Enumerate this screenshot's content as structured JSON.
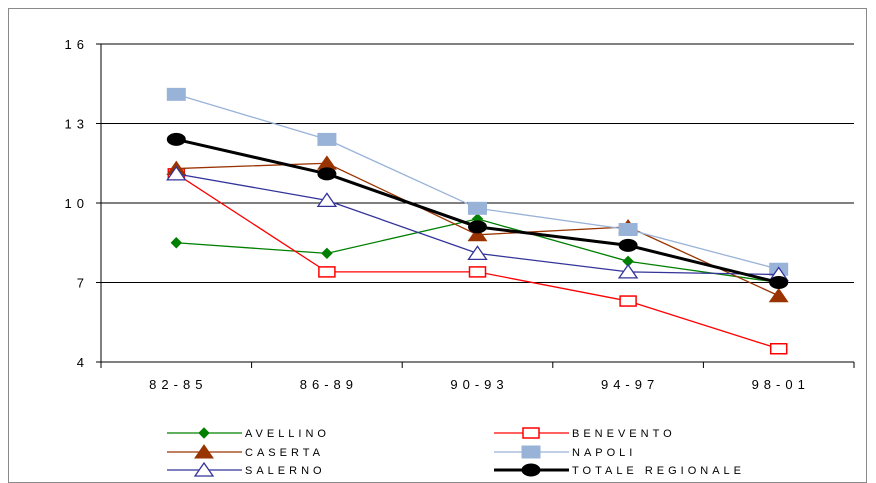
{
  "chart_data": {
    "type": "line",
    "title": "",
    "xlabel": "",
    "ylabel": "",
    "categories": [
      "82-85",
      "86-89",
      "90-93",
      "94-97",
      "98-01"
    ],
    "ylim": [
      4,
      16
    ],
    "yticks": [
      4,
      7,
      10,
      13,
      16
    ],
    "grid": true,
    "legend_position": "bottom",
    "series": [
      {
        "name": "AVELLINO",
        "color": "#008000",
        "marker": "diamond-filled",
        "values": [
          8.5,
          8.1,
          9.4,
          7.8,
          7.0
        ]
      },
      {
        "name": "BENEVENTO",
        "color": "#ff0000",
        "marker": "square-open",
        "values": [
          11.1,
          7.4,
          7.4,
          6.3,
          4.5
        ]
      },
      {
        "name": "CASERTA",
        "color": "#993300",
        "marker": "triangle-filled",
        "values": [
          11.3,
          11.5,
          8.8,
          9.1,
          6.5
        ]
      },
      {
        "name": "NAPOLI",
        "color": "#99b3d8",
        "marker": "square-filled",
        "values": [
          14.1,
          12.4,
          9.8,
          9.0,
          7.5
        ]
      },
      {
        "name": "SALERNO",
        "color": "#333399",
        "marker": "triangle-open",
        "values": [
          11.1,
          10.1,
          8.1,
          7.4,
          7.3
        ]
      },
      {
        "name": "TOTALE REGIONALE",
        "color": "#000000",
        "marker": "circle-filled",
        "values": [
          12.4,
          11.1,
          9.1,
          8.4,
          7.0
        ]
      }
    ]
  }
}
